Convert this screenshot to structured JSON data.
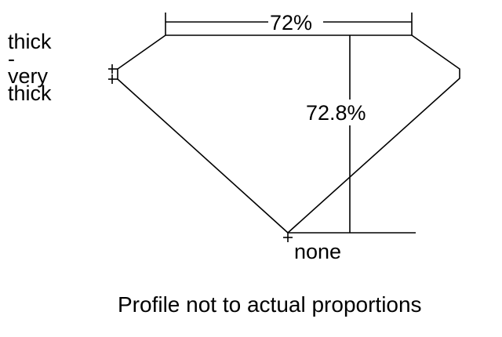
{
  "girdle_label": [
    "thick",
    "-",
    "very",
    "thick"
  ],
  "table_label": "72%",
  "depth_label": "72.8%",
  "culet_label": "none",
  "caption": "Profile not to actual proportions"
}
